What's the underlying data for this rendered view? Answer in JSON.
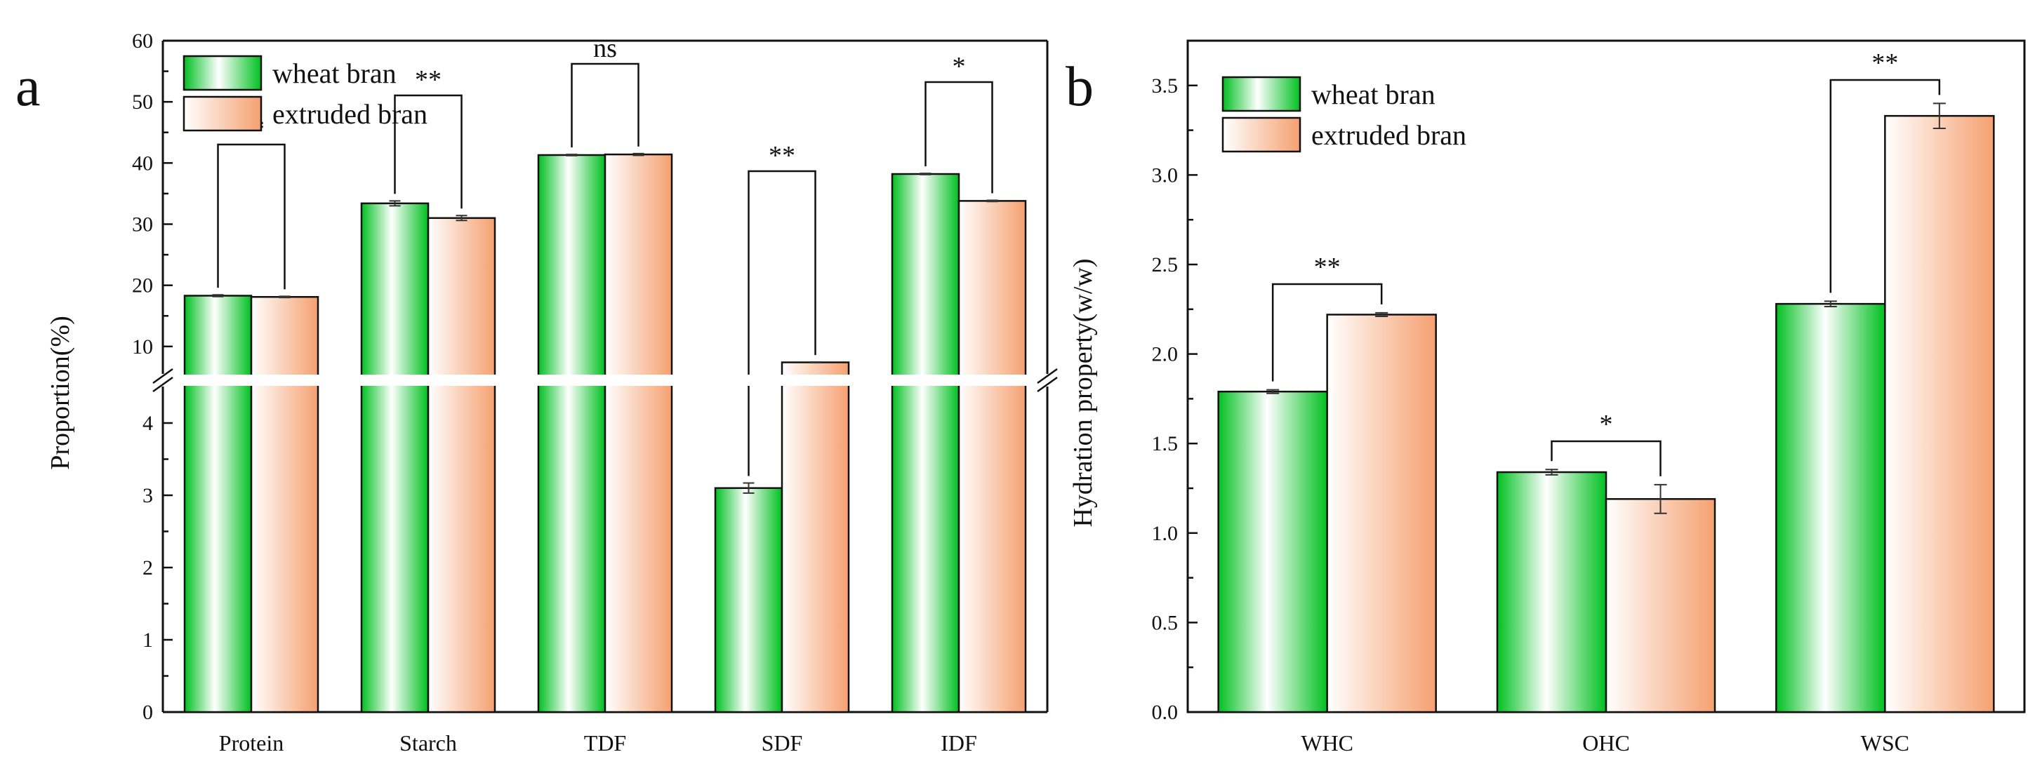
{
  "palette": {
    "wheat_dark": "#00c020",
    "wheat_light": "#ffffff",
    "extruded_dark": "#f5a070",
    "extruded_light": "#ffffff",
    "axis": "#111111"
  },
  "chart_data": [
    {
      "panel": "a",
      "type": "bar",
      "title": "",
      "xlabel": "",
      "ylabel": "Proportion(%)",
      "ylim": [
        0,
        60
      ],
      "axis_break": {
        "lower_range": [
          0,
          5
        ],
        "upper_range": [
          7,
          60
        ]
      },
      "lower_ticks": [
        0,
        1,
        2,
        3,
        4
      ],
      "upper_ticks": [
        10,
        20,
        30,
        40,
        50,
        60
      ],
      "categories": [
        "Protein",
        "Starch",
        "TDF",
        "SDF",
        "IDF"
      ],
      "series": [
        {
          "name": "wheat bran",
          "values": [
            18.3,
            33.4,
            41.3,
            3.1,
            38.2
          ],
          "errors": [
            0.15,
            0.4,
            0.1,
            0.07,
            0.1
          ]
        },
        {
          "name": "extruded bran",
          "values": [
            18.1,
            31.0,
            41.4,
            7.4,
            33.8
          ],
          "errors": [
            0.1,
            0.4,
            0.15,
            0.05,
            0.1
          ]
        }
      ],
      "significance": [
        "**",
        "**",
        "ns",
        "**",
        "*"
      ],
      "legend": {
        "position": "top-left",
        "entries": [
          "wheat bran",
          "extruded bran"
        ]
      }
    },
    {
      "panel": "b",
      "type": "bar",
      "title": "",
      "xlabel": "",
      "ylabel": "Hydration property(w/w)",
      "ylim": [
        0,
        3.75
      ],
      "ticks": [
        "0.0",
        "0.5",
        "1.0",
        "1.5",
        "2.0",
        "2.5",
        "3.0",
        "3.5"
      ],
      "categories": [
        "WHC",
        "OHC",
        "WSC"
      ],
      "series": [
        {
          "name": "wheat bran",
          "values": [
            1.79,
            1.34,
            2.28
          ],
          "errors": [
            0.01,
            0.015,
            0.015
          ]
        },
        {
          "name": "extruded bran",
          "values": [
            2.22,
            1.19,
            3.33
          ],
          "errors": [
            0.01,
            0.08,
            0.07
          ]
        }
      ],
      "significance": [
        "**",
        "*",
        "**"
      ],
      "legend": {
        "position": "top-left",
        "entries": [
          "wheat bran",
          "extruded bran"
        ]
      }
    }
  ]
}
